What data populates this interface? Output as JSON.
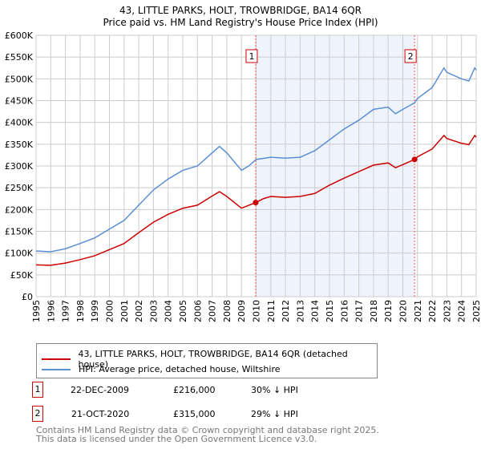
{
  "chart_data": {
    "type": "line",
    "title": "43, LITTLE PARKS, HOLT, TROWBRIDGE, BA14 6QR",
    "subtitle": "Price paid vs. HM Land Registry's House Price Index (HPI)",
    "xlim": [
      1995,
      2025
    ],
    "ylim": [
      0,
      600000
    ],
    "yticks": [
      0,
      50000,
      100000,
      150000,
      200000,
      250000,
      300000,
      350000,
      400000,
      450000,
      500000,
      550000,
      600000
    ],
    "ytick_labels": [
      "£0",
      "£50K",
      "£100K",
      "£150K",
      "£200K",
      "£250K",
      "£300K",
      "£350K",
      "£400K",
      "£450K",
      "£500K",
      "£550K",
      "£600K"
    ],
    "xticks": [
      1995,
      1996,
      1997,
      1998,
      1999,
      2000,
      2001,
      2002,
      2003,
      2004,
      2005,
      2006,
      2007,
      2008,
      2009,
      2010,
      2011,
      2012,
      2013,
      2014,
      2015,
      2016,
      2017,
      2018,
      2019,
      2020,
      2021,
      2022,
      2023,
      2024,
      2025
    ],
    "grid": true,
    "shaded_range": [
      2009.97,
      2020.8
    ],
    "series": [
      {
        "name": "43, LITTLE PARKS, HOLT, TROWBRIDGE, BA14 6QR (detached house)",
        "color": "#cc0000",
        "x": [
          1995,
          1996,
          1997,
          1998,
          1999,
          2000,
          2001,
          2002,
          2003,
          2004,
          2005,
          2006,
          2007,
          2007.5,
          2008,
          2009,
          2009.97,
          2010.5,
          2011,
          2012,
          2013,
          2014,
          2015,
          2016,
          2017,
          2018,
          2019,
          2019.5,
          2020,
          2020.8,
          2021,
          2022,
          2022.8,
          2023,
          2024,
          2024.5,
          2024.9,
          2025
        ],
        "y": [
          73000,
          72000,
          77000,
          85000,
          94000,
          108000,
          122000,
          147000,
          171000,
          189000,
          203000,
          210000,
          231000,
          241000,
          230000,
          203000,
          216000,
          225000,
          230000,
          228000,
          230000,
          237000,
          256000,
          272000,
          287000,
          302000,
          307000,
          296000,
          303000,
          315000,
          321000,
          339000,
          370000,
          363000,
          352000,
          349000,
          370000,
          366000
        ]
      },
      {
        "name": "HPI: Average price, detached house, Wiltshire",
        "color": "#5b8fd4",
        "x": [
          1995,
          1996,
          1997,
          1998,
          1999,
          2000,
          2001,
          2002,
          2003,
          2004,
          2005,
          2006,
          2007,
          2007.5,
          2008,
          2009,
          2009.5,
          2010,
          2011,
          2012,
          2013,
          2014,
          2015,
          2016,
          2017,
          2018,
          2019,
          2019.5,
          2020,
          2020.8,
          2021,
          2022,
          2022.8,
          2023,
          2024,
          2024.5,
          2024.9,
          2025
        ],
        "y": [
          105000,
          103000,
          110000,
          122000,
          135000,
          155000,
          175000,
          210000,
          245000,
          270000,
          290000,
          300000,
          330000,
          345000,
          330000,
          290000,
          300000,
          315000,
          320000,
          318000,
          320000,
          335000,
          360000,
          385000,
          405000,
          430000,
          435000,
          420000,
          430000,
          445000,
          455000,
          480000,
          525000,
          515000,
          500000,
          495000,
          525000,
          520000
        ]
      }
    ],
    "sales": [
      {
        "label": "1",
        "x": 2009.97,
        "y": 216000
      },
      {
        "label": "2",
        "x": 2020.8,
        "y": 315000
      }
    ]
  },
  "table": [
    {
      "num": "1",
      "date": "22-DEC-2009",
      "price": "£216,000",
      "hpi": "30% ↓ HPI"
    },
    {
      "num": "2",
      "date": "21-OCT-2020",
      "price": "£315,000",
      "hpi": "29% ↓ HPI"
    }
  ],
  "footer": {
    "line1": "Contains HM Land Registry data © Crown copyright and database right 2025.",
    "line2": "This data is licensed under the Open Government Licence v3.0."
  }
}
